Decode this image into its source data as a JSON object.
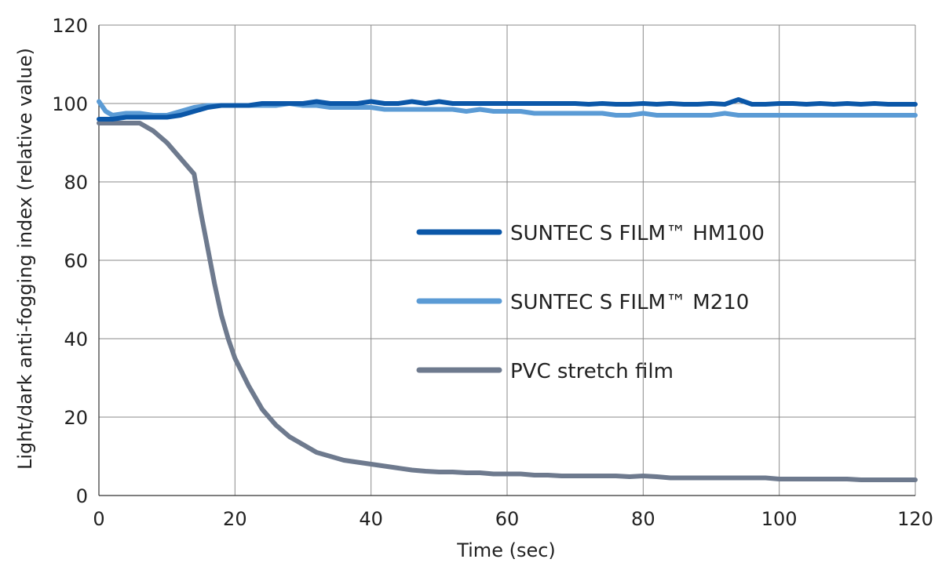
{
  "chart_data": {
    "type": "line",
    "title": "",
    "xlabel": "Time (sec)",
    "ylabel": "Light/dark anti-fogging index (relative value)",
    "xlim": [
      0,
      120
    ],
    "ylim": [
      0,
      120
    ],
    "xticks": [
      0,
      20,
      40,
      60,
      80,
      100,
      120
    ],
    "yticks": [
      0,
      20,
      40,
      60,
      80,
      100,
      120
    ],
    "grid": true,
    "legend_position": "center-right",
    "series": [
      {
        "name": "SUNTEC S FILM™ HM100",
        "color": "#0b57a8",
        "x": [
          0,
          2,
          4,
          6,
          8,
          10,
          12,
          14,
          16,
          18,
          20,
          22,
          24,
          26,
          28,
          30,
          32,
          34,
          36,
          38,
          40,
          42,
          44,
          46,
          48,
          50,
          52,
          54,
          56,
          58,
          60,
          62,
          64,
          66,
          68,
          70,
          72,
          74,
          76,
          78,
          80,
          82,
          84,
          86,
          88,
          90,
          92,
          94,
          96,
          98,
          100,
          102,
          104,
          106,
          108,
          110,
          112,
          114,
          116,
          118,
          120
        ],
        "y": [
          96,
          96,
          96.5,
          96.5,
          96.5,
          96.5,
          97,
          98,
          99,
          99.5,
          99.5,
          99.5,
          100,
          100,
          100,
          100,
          100.5,
          100,
          100,
          100,
          100.5,
          100,
          100,
          100.5,
          100,
          100.5,
          100,
          100,
          100,
          100,
          100,
          100,
          100,
          100,
          100,
          100,
          99.8,
          100,
          99.8,
          99.8,
          100,
          99.8,
          100,
          99.8,
          99.8,
          100,
          99.8,
          101,
          99.8,
          99.8,
          100,
          100,
          99.8,
          100,
          99.8,
          100,
          99.8,
          100,
          99.8,
          99.8,
          99.8
        ]
      },
      {
        "name": "SUNTEC S FILM™ M210",
        "color": "#5b9bd5",
        "x": [
          0,
          1,
          2,
          4,
          6,
          8,
          10,
          12,
          14,
          16,
          18,
          20,
          22,
          24,
          26,
          28,
          30,
          32,
          34,
          36,
          38,
          40,
          42,
          44,
          46,
          48,
          50,
          52,
          54,
          56,
          58,
          60,
          62,
          64,
          66,
          68,
          70,
          72,
          74,
          76,
          78,
          80,
          82,
          84,
          86,
          88,
          90,
          92,
          94,
          96,
          98,
          100,
          102,
          104,
          106,
          108,
          110,
          112,
          114,
          116,
          118,
          120
        ],
        "y": [
          100.5,
          98,
          97,
          97.5,
          97.5,
          97,
          97,
          98,
          99,
          99.5,
          99.5,
          99.5,
          99.5,
          99.5,
          99.5,
          100,
          99.5,
          99.5,
          99,
          99,
          99,
          99,
          98.5,
          98.5,
          98.5,
          98.5,
          98.5,
          98.5,
          98,
          98.5,
          98,
          98,
          98,
          97.5,
          97.5,
          97.5,
          97.5,
          97.5,
          97.5,
          97,
          97,
          97.5,
          97,
          97,
          97,
          97,
          97,
          97.5,
          97,
          97,
          97,
          97,
          97,
          97,
          97,
          97,
          97,
          97,
          97,
          97,
          97,
          97
        ]
      },
      {
        "name": "PVC stretch film",
        "color": "#6e7a8e",
        "x": [
          0,
          2,
          4,
          6,
          8,
          10,
          12,
          14,
          15,
          16,
          17,
          18,
          19,
          20,
          22,
          24,
          26,
          28,
          30,
          32,
          34,
          36,
          38,
          40,
          42,
          44,
          46,
          48,
          50,
          52,
          54,
          56,
          58,
          60,
          62,
          64,
          66,
          68,
          70,
          72,
          74,
          76,
          78,
          80,
          82,
          84,
          86,
          88,
          90,
          92,
          94,
          96,
          98,
          100,
          102,
          104,
          106,
          108,
          110,
          112,
          114,
          116,
          118,
          120
        ],
        "y": [
          95,
          95,
          95,
          95,
          93,
          90,
          86,
          82,
          72,
          63,
          54,
          46,
          40,
          35,
          28,
          22,
          18,
          15,
          13,
          11,
          10,
          9,
          8.5,
          8,
          7.5,
          7,
          6.5,
          6.2,
          6,
          6,
          5.8,
          5.8,
          5.5,
          5.5,
          5.5,
          5.2,
          5.2,
          5,
          5,
          5,
          5,
          5,
          4.8,
          5,
          4.8,
          4.5,
          4.5,
          4.5,
          4.5,
          4.5,
          4.5,
          4.5,
          4.5,
          4.2,
          4.2,
          4.2,
          4.2,
          4.2,
          4.2,
          4,
          4,
          4,
          4,
          4
        ]
      }
    ]
  }
}
